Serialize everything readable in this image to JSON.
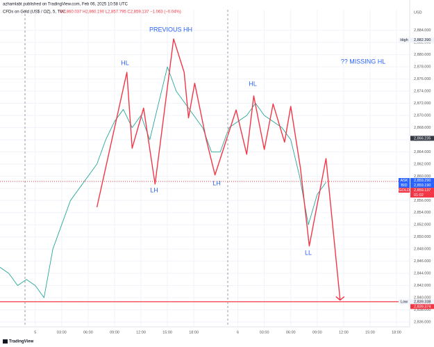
{
  "chart_data": {
    "type": "line",
    "publisher": "azhamlabt published on TradingView.com, Feb 06, 2025 10:58 UTC",
    "title": "CFDs on Gold (US$ / OZ), 5, TVC",
    "ohlc": "O2,860.037 H2,860.190 L2,857.795 C2,859.137 −1.063 (−0.04%)",
    "currency": "USD",
    "brand": "TradingView",
    "xlim": [
      -4,
      42.5
    ],
    "ylim": [
      2835.2,
      2887.4
    ],
    "xticks": [
      {
        "value": 0,
        "label": "5"
      },
      {
        "value": 3,
        "label": "03:00"
      },
      {
        "value": 6,
        "label": "06:00"
      },
      {
        "value": 9,
        "label": "09:00"
      },
      {
        "value": 12,
        "label": "12:00"
      },
      {
        "value": 15,
        "label": "15:00"
      },
      {
        "value": 18,
        "label": "18:00"
      },
      {
        "value": 23,
        "label": "6"
      },
      {
        "value": 26,
        "label": "03:00"
      },
      {
        "value": 29,
        "label": "06:00"
      },
      {
        "value": 32,
        "label": "09:00"
      },
      {
        "value": 35,
        "label": "12:00"
      },
      {
        "value": 38,
        "label": "15:00"
      },
      {
        "value": 41,
        "label": "18:00"
      }
    ],
    "yticks": [
      {
        "value": 2836,
        "label": "2,836.000"
      },
      {
        "value": 2838,
        "label": "2,838.000"
      },
      {
        "value": 2840,
        "label": "2,840.000"
      },
      {
        "value": 2842,
        "label": "2,842.000"
      },
      {
        "value": 2844,
        "label": "2,844.000"
      },
      {
        "value": 2846,
        "label": "2,846.000"
      },
      {
        "value": 2848,
        "label": "2,848.000"
      },
      {
        "value": 2850,
        "label": "2,850.000"
      },
      {
        "value": 2852,
        "label": "2,852.000"
      },
      {
        "value": 2854,
        "label": "2,854.000"
      },
      {
        "value": 2856,
        "label": "2,856.000"
      },
      {
        "value": 2858,
        "label": "2,858.000"
      },
      {
        "value": 2860,
        "label": "2,860.000"
      },
      {
        "value": 2862,
        "label": "2,862.000"
      },
      {
        "value": 2864,
        "label": "2,864.000"
      },
      {
        "value": 2866,
        "label": "2,866.000"
      },
      {
        "value": 2868,
        "label": "2,868.000"
      },
      {
        "value": 2870,
        "label": "2,870.000"
      },
      {
        "value": 2872,
        "label": "2,872.000"
      },
      {
        "value": 2874,
        "label": "2,874.000"
      },
      {
        "value": 2876,
        "label": "2,876.000"
      },
      {
        "value": 2878,
        "label": "2,878.000"
      },
      {
        "value": 2880,
        "label": "2,880.000"
      },
      {
        "value": 2882,
        "label": "2,882.000"
      },
      {
        "value": 2884,
        "label": "2,884.000"
      }
    ],
    "series": [
      {
        "color": "#26a69a",
        "x": [
          -4,
          -3,
          -2,
          -1,
          0,
          1,
          2,
          3,
          4,
          5,
          6,
          7,
          8,
          9,
          10,
          11,
          12,
          13,
          14,
          15,
          16,
          17,
          18,
          19,
          20,
          21,
          22,
          23,
          24,
          25,
          26,
          27,
          28,
          29,
          30,
          31,
          32,
          33
        ],
        "values": [
          2845,
          2844,
          2842,
          2843,
          2842,
          2840,
          2848,
          2852,
          2856,
          2858,
          2860,
          2862,
          2866,
          2869,
          2871,
          2868,
          2870,
          2866,
          2872,
          2878,
          2874,
          2872,
          2870,
          2868,
          2864,
          2864,
          2868,
          2869,
          2870,
          2872,
          2870,
          2869,
          2868,
          2866,
          2860,
          2852,
          2857,
          2859
        ]
      },
      {
        "color": "#f23645",
        "x": [
          7.0,
          10.4,
          11.0,
          12.3,
          13.6,
          15.7,
          16.9,
          17.4,
          18.1,
          19.4,
          20.4,
          22.8,
          24.0,
          24.8,
          26.0,
          27.0,
          28.3,
          29.0,
          30.1,
          31.1,
          33.0,
          34.6
        ],
        "values": [
          2854.9,
          2877.1,
          2864.6,
          2871.2,
          2858.7,
          2882.6,
          2877.1,
          2869.6,
          2875.3,
          2866.1,
          2860.2,
          2870.9,
          2863.6,
          2873.2,
          2864.4,
          2871.9,
          2865.6,
          2871.5,
          2861.3,
          2848.5,
          2862.9,
          2839.6
        ]
      }
    ],
    "annotations": [
      "PREVIOUS HH",
      "HL",
      "LH",
      "LH",
      "HL",
      "?? MISSING HL",
      "LL"
    ],
    "price_labels": [
      {
        "name": "High",
        "value": 2882.39,
        "label": "2,882.390",
        "color": "#f0f3fa"
      },
      {
        "value": 2866.235,
        "label": "2,866.235",
        "color": "#363a45"
      },
      {
        "name": "ASK",
        "value": 2859.29,
        "label": "2,859.290",
        "color": "#2962ff"
      },
      {
        "name": "BID",
        "value": 2859.19,
        "label": "2,859.190",
        "color": "#2962ff"
      },
      {
        "name": "GOLD",
        "value": 2859.137,
        "label": "2,859.137",
        "color": "#f23645",
        "sub": "01:02",
        "dotted": true
      },
      {
        "name": "Low",
        "value": 2839.338,
        "label": "2,839.338",
        "color": "#f0f3fa",
        "hline": true
      },
      {
        "value": 2839.374,
        "label": "2,839.374",
        "color": "#f23645"
      }
    ]
  }
}
